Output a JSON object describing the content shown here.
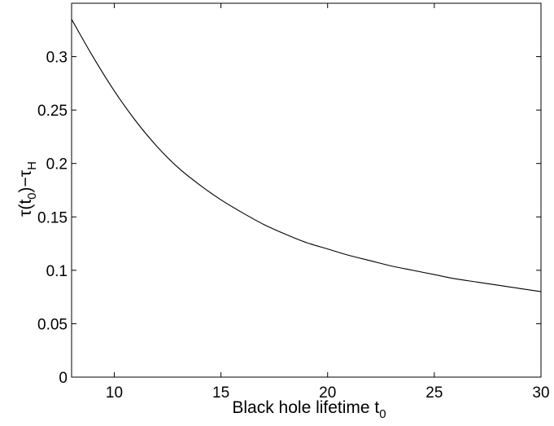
{
  "chart_data": {
    "type": "line",
    "title": "",
    "xlabel": {
      "main": "Black hole lifetime t",
      "subscript": "0"
    },
    "ylabel": {
      "p1": "τ(t",
      "sub1": "0",
      "p2": ")−τ",
      "sub2": "H"
    },
    "xlim": [
      8,
      30
    ],
    "ylim": [
      0,
      0.35
    ],
    "xticks": [
      10,
      15,
      20,
      25,
      30
    ],
    "xtick_labels": [
      "10",
      "15",
      "20",
      "25",
      "30"
    ],
    "yticks": [
      0,
      0.05,
      0.1,
      0.15,
      0.2,
      0.25,
      0.3
    ],
    "ytick_labels": [
      "0",
      "0.05",
      "0.1",
      "0.15",
      "0.2",
      "0.25",
      "0.3"
    ],
    "grid": false,
    "series": [
      {
        "color": "#000000",
        "x": [
          8,
          9,
          10,
          11,
          12,
          13,
          14,
          15,
          16,
          17,
          18,
          19,
          20,
          21,
          22,
          23,
          24,
          25,
          26,
          27,
          28,
          29,
          30
        ],
        "y": [
          0.335,
          0.3,
          0.268,
          0.24,
          0.216,
          0.196,
          0.18,
          0.166,
          0.154,
          0.143,
          0.134,
          0.126,
          0.12,
          0.114,
          0.109,
          0.104,
          0.1,
          0.096,
          0.092,
          0.089,
          0.086,
          0.083,
          0.08
        ]
      }
    ]
  }
}
